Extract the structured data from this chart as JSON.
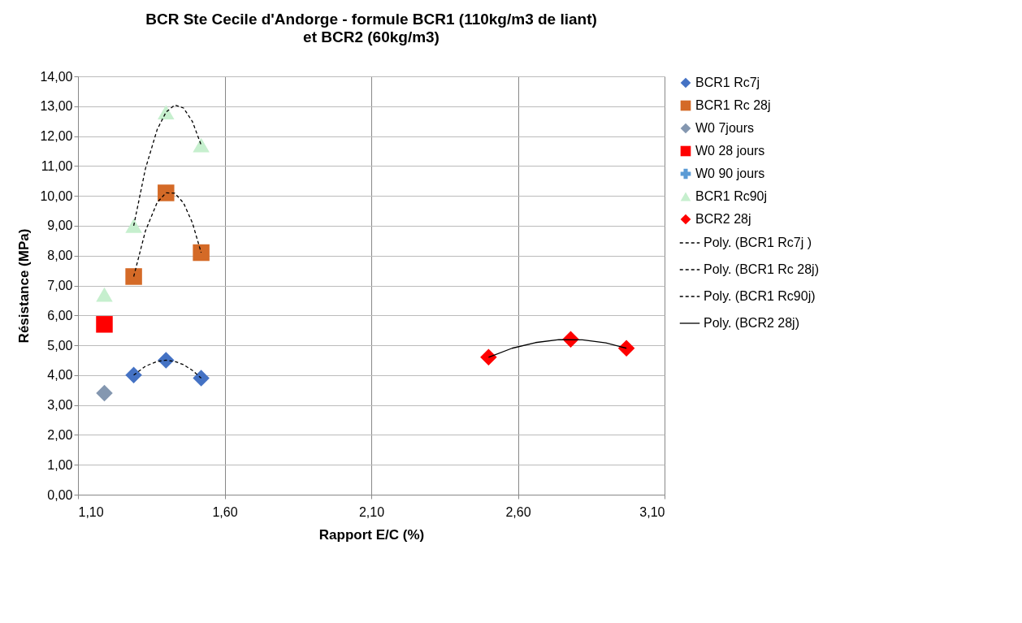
{
  "chart_data": {
    "type": "scatter",
    "title": "BCR Ste Cecile d'Andorge - formule BCR1 (110kg/m3 de liant)",
    "subtitle": "et BCR2 (60kg/m3)",
    "xlabel": "Rapport E/C (%)",
    "ylabel": "Résistance (MPa)",
    "xlim": [
      1.1,
      3.1
    ],
    "xticks": [
      {
        "value": 1.1,
        "label": "1,10"
      },
      {
        "value": 1.6,
        "label": "1,60"
      },
      {
        "value": 2.1,
        "label": "2,10"
      },
      {
        "value": 2.6,
        "label": "2,60"
      },
      {
        "value": 3.1,
        "label": "3,10"
      }
    ],
    "ylim": [
      0,
      14
    ],
    "yticks": [
      {
        "value": 0,
        "label": "0,00"
      },
      {
        "value": 1,
        "label": "1,00"
      },
      {
        "value": 2,
        "label": "2,00"
      },
      {
        "value": 3,
        "label": "3,00"
      },
      {
        "value": 4,
        "label": "4,00"
      },
      {
        "value": 5,
        "label": "5,00"
      },
      {
        "value": 6,
        "label": "6,00"
      },
      {
        "value": 7,
        "label": "7,00"
      },
      {
        "value": 8,
        "label": "8,00"
      },
      {
        "value": 9,
        "label": "9,00"
      },
      {
        "value": 10,
        "label": "10,00"
      },
      {
        "value": 11,
        "label": "11,00"
      },
      {
        "value": 12,
        "label": "12,00"
      },
      {
        "value": 13,
        "label": "13,00"
      },
      {
        "value": 14,
        "label": "14,00"
      }
    ],
    "grid": true,
    "legend": "right",
    "series": [
      {
        "name": "BCR1  Rc7j",
        "color": "#4472c4",
        "marker": "diamond",
        "x": [
          1.29,
          1.4,
          1.52
        ],
        "values": [
          4.0,
          4.5,
          3.9
        ]
      },
      {
        "name": "BCR1 Rc 28j",
        "color": "#d46a27",
        "marker": "square",
        "x": [
          1.29,
          1.4,
          1.52
        ],
        "values": [
          7.3,
          10.1,
          8.1
        ]
      },
      {
        "name": "W0 7jours",
        "color": "#8497b0",
        "marker": "diamond",
        "x": [
          1.19
        ],
        "values": [
          3.4
        ]
      },
      {
        "name": "W0 28 jours",
        "color": "#ff0000",
        "marker": "square",
        "x": [
          1.19
        ],
        "values": [
          5.7
        ]
      },
      {
        "name": "W0 90 jours",
        "color": "#5b9bd5",
        "marker": "cross"
      },
      {
        "name": "BCR1 Rc90j",
        "color": "#c6efce",
        "marker": "triangle",
        "x": [
          1.19,
          1.29,
          1.4,
          1.52
        ],
        "values": [
          6.7,
          9.0,
          12.8,
          11.7
        ]
      },
      {
        "name": "BCR2 28j",
        "color": "#ff0000",
        "marker": "diamond",
        "x": [
          2.5,
          2.78,
          2.97
        ],
        "values": [
          4.6,
          5.2,
          4.9
        ]
      },
      {
        "name": "Poly. (BCR1  Rc7j )",
        "type": "line",
        "color": "#000000",
        "line_style": "dashed",
        "x": [
          1.29,
          1.33,
          1.37,
          1.4,
          1.43,
          1.46,
          1.49,
          1.52
        ],
        "values": [
          4.0,
          4.3,
          4.46,
          4.5,
          4.46,
          4.35,
          4.16,
          3.9
        ]
      },
      {
        "name": "Poly. (BCR1 Rc 28j)",
        "type": "line",
        "color": "#000000",
        "line_style": "dashed",
        "x": [
          1.29,
          1.33,
          1.37,
          1.4,
          1.43,
          1.46,
          1.49,
          1.52
        ],
        "values": [
          7.3,
          8.83,
          9.78,
          10.1,
          10.09,
          9.76,
          9.1,
          8.1
        ]
      },
      {
        "name": "Poly. (BCR1 Rc90j)",
        "type": "line",
        "color": "#000000",
        "line_style": "dashed",
        "x": [
          1.29,
          1.33,
          1.37,
          1.4,
          1.43,
          1.46,
          1.49,
          1.52
        ],
        "values": [
          9.0,
          10.91,
          12.22,
          12.8,
          13.04,
          12.94,
          12.49,
          11.7
        ]
      },
      {
        "name": "Poly. (BCR2 28j)",
        "type": "line",
        "color": "#000000",
        "line_style": "solid",
        "x": [
          2.5,
          2.58,
          2.66,
          2.74,
          2.82,
          2.9,
          2.97
        ],
        "values": [
          4.6,
          4.9,
          5.09,
          5.19,
          5.18,
          5.08,
          4.9
        ]
      }
    ]
  }
}
